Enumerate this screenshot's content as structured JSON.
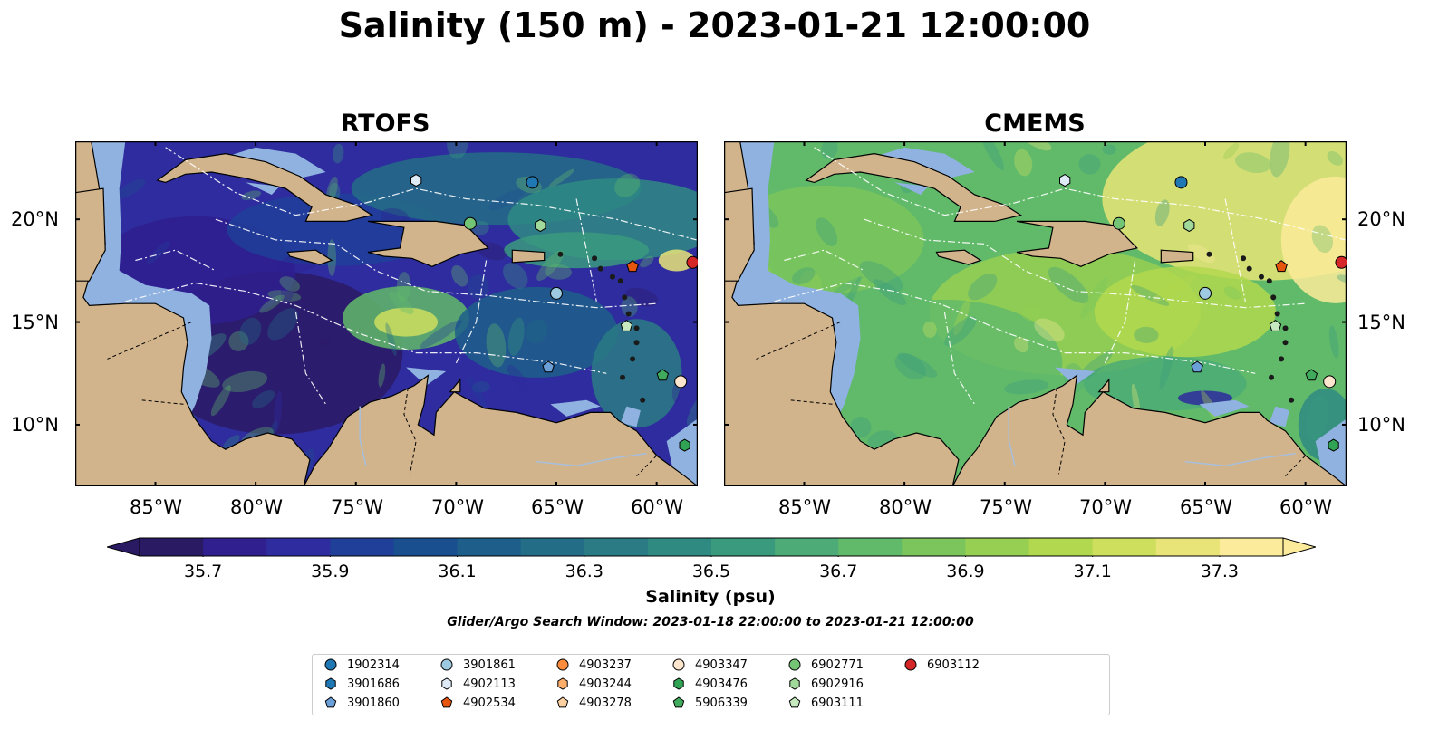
{
  "title": "Salinity (150 m) - 2023-01-21 12:00:00",
  "panels": [
    {
      "title": "RTOFS",
      "field": "rtofs"
    },
    {
      "title": "CMEMS",
      "field": "cmems"
    }
  ],
  "lat_labels": [
    "20°N",
    "15°N",
    "10°N"
  ],
  "lon_labels": [
    "85°W",
    "80°W",
    "75°W",
    "70°W",
    "65°W",
    "60°W"
  ],
  "colorbar": {
    "label": "Salinity (psu)",
    "min": 35.6,
    "max": 37.4,
    "step": 0.1,
    "ticks": [
      "35.7",
      "35.9",
      "36.1",
      "36.3",
      "36.5",
      "36.7",
      "36.9",
      "37.1",
      "37.3"
    ],
    "colors": [
      "#2a1a64",
      "#2f1f8f",
      "#2e2c9e",
      "#1f3f99",
      "#194f8f",
      "#1d5f8a",
      "#236d86",
      "#2a7b84",
      "#2f8a82",
      "#3a9a7e",
      "#4cab76",
      "#61ba6a",
      "#7bc55c",
      "#96cf51",
      "#b1d84e",
      "#cedf5e",
      "#e8e477",
      "#fbeb9a"
    ],
    "extend": "both"
  },
  "search_window": "Glider/Argo Search Window: 2023-01-18 22:00:00 to 2023-01-21 12:00:00",
  "colors": {
    "land": "#d2b48c",
    "shelf": "#8fb2e0",
    "deep": "#2a1a64"
  },
  "legend": [
    {
      "id": "1902314",
      "marker": "circle",
      "color": "#1f77b4"
    },
    {
      "id": "3901686",
      "marker": "hexagon",
      "color": "#1f77b4"
    },
    {
      "id": "3901860",
      "marker": "pentagon",
      "color": "#6a9fd8"
    },
    {
      "id": "3901861",
      "marker": "circle",
      "color": "#9ecae1"
    },
    {
      "id": "4902113",
      "marker": "hexagon",
      "color": "#deebf7"
    },
    {
      "id": "4902534",
      "marker": "pentagon",
      "color": "#e6550d"
    },
    {
      "id": "4903237",
      "marker": "circle",
      "color": "#fd8d3c"
    },
    {
      "id": "4903244",
      "marker": "hexagon",
      "color": "#fdae6b"
    },
    {
      "id": "4903278",
      "marker": "pentagon",
      "color": "#fdd0a2"
    },
    {
      "id": "4903347",
      "marker": "circle",
      "color": "#fee6ce"
    },
    {
      "id": "4903476",
      "marker": "hexagon",
      "color": "#31a354"
    },
    {
      "id": "5906339",
      "marker": "pentagon",
      "color": "#41ab5d"
    },
    {
      "id": "6902771",
      "marker": "circle",
      "color": "#74c476"
    },
    {
      "id": "6902916",
      "marker": "hexagon",
      "color": "#a1d99b"
    },
    {
      "id": "6903111",
      "marker": "pentagon",
      "color": "#c7e9c0"
    },
    {
      "id": "6903112",
      "marker": "circle",
      "color": "#d62728"
    }
  ],
  "floats": [
    {
      "id": "1902314",
      "lon": -66.2,
      "lat": 21.8
    },
    {
      "id": "4902113",
      "lat": 21.9,
      "lon": -72.0
    },
    {
      "id": "6902771",
      "lon": -69.3,
      "lat": 19.8
    },
    {
      "id": "6902916",
      "lon": -65.8,
      "lat": 19.7
    },
    {
      "id": "6903112",
      "lon": -58.2,
      "lat": 17.9
    },
    {
      "id": "4902534",
      "lon": -61.2,
      "lat": 17.7
    },
    {
      "id": "3901861",
      "lon": -65.0,
      "lat": 16.4
    },
    {
      "id": "6903111",
      "lon": -61.5,
      "lat": 14.8
    },
    {
      "id": "3901860",
      "lon": -65.4,
      "lat": 12.8
    },
    {
      "id": "5906339",
      "lon": -59.7,
      "lat": 12.4
    },
    {
      "id": "4903347",
      "lon": -58.8,
      "lat": 12.1
    },
    {
      "id": "4903476",
      "lon": -58.6,
      "lat": 9.0
    }
  ]
}
